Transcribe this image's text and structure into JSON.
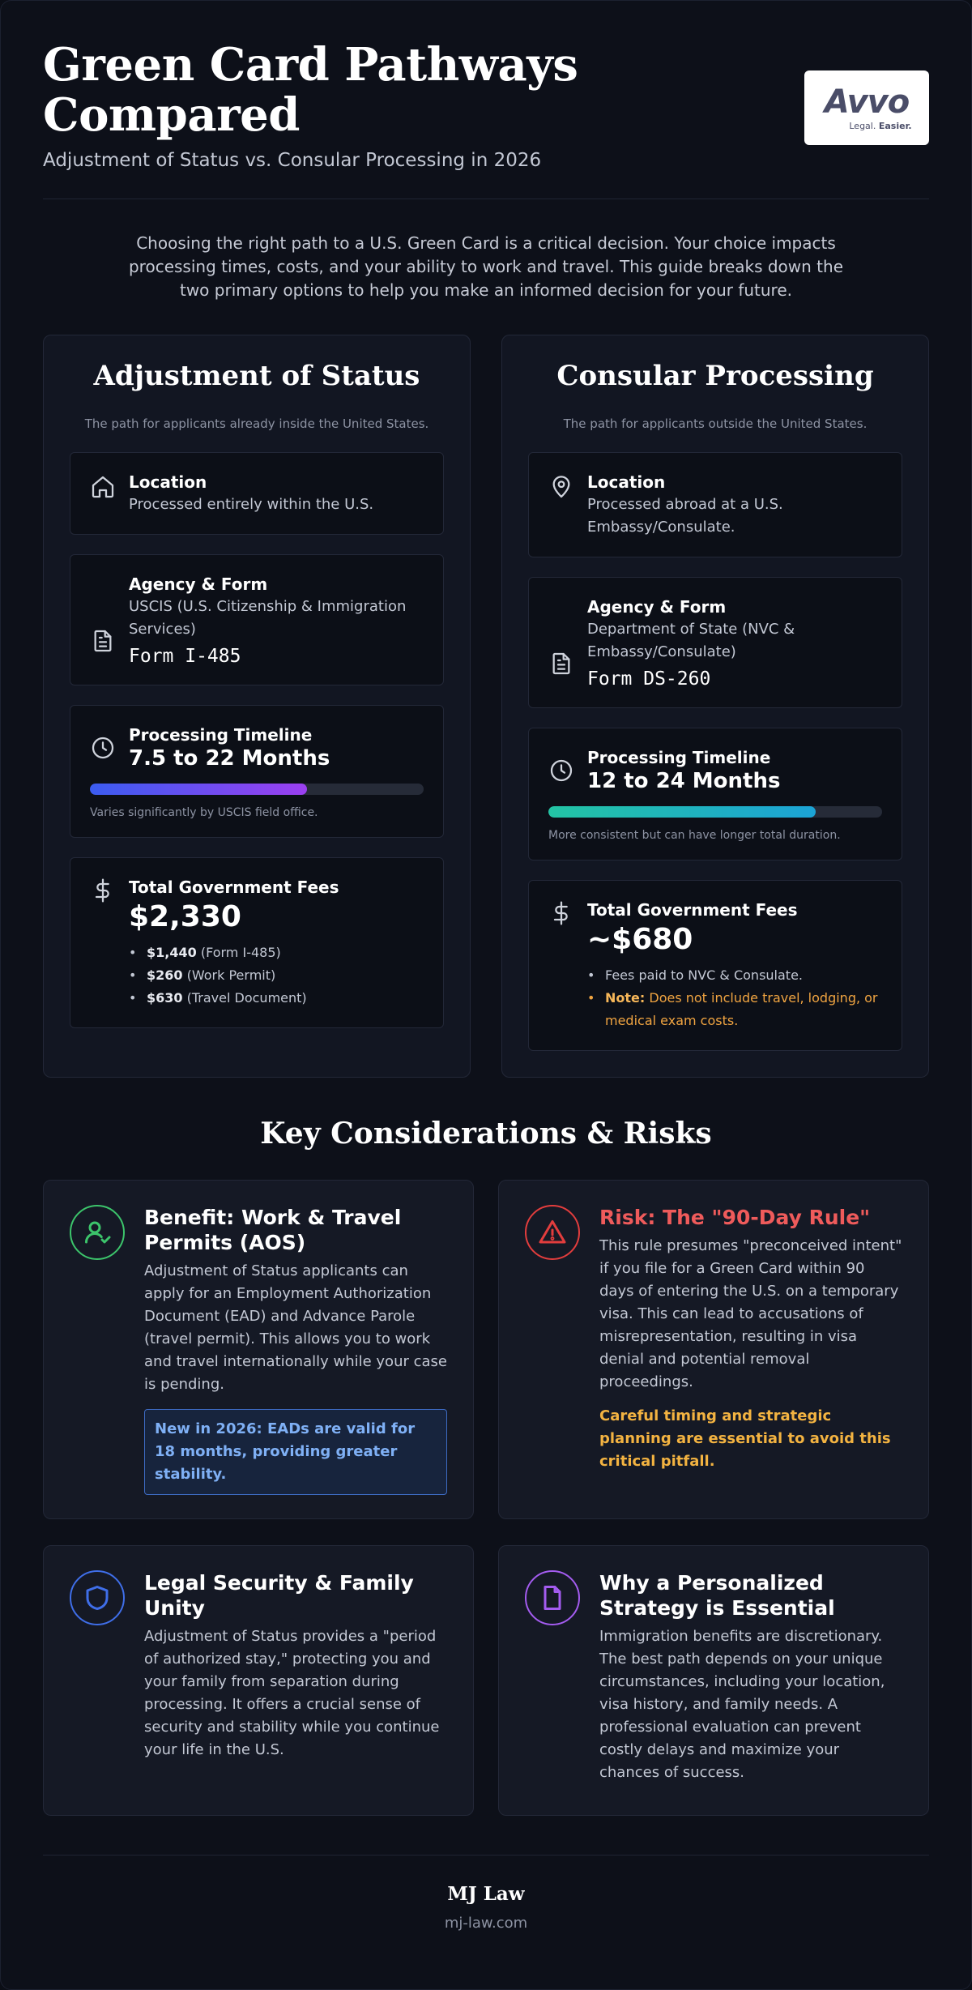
{
  "header": {
    "title": "Green Card Pathways Compared",
    "subtitle": "Adjustment of Status vs. Consular Processing in 2026",
    "logo": {
      "word": "Avvo",
      "tag_a": "Legal.",
      "tag_b": "Easier."
    }
  },
  "intro": "Choosing the right path to a U.S. Green Card is a critical decision. Your choice impacts processing times, costs, and your ability to work and travel. This guide breaks down the two primary options to help you make an informed decision for your future.",
  "aos": {
    "title": "Adjustment of Status",
    "subtitle": "The path for applicants already inside the United States.",
    "location": {
      "label": "Location",
      "text": "Processed entirely within the U.S.",
      "icon": "home-icon"
    },
    "agency": {
      "label": "Agency & Form",
      "text": "USCIS (U.S. Citizenship & Immigration Services)",
      "form": "Form I-485",
      "icon": "document-icon"
    },
    "timeline": {
      "label": "Processing Timeline",
      "value": "7.5 to 22 Months",
      "progress": 0.65,
      "note": "Varies significantly by USCIS field office.",
      "icon": "clock-icon",
      "color_start": "#3b5cf0",
      "color_end": "#9b3ff0"
    },
    "fees": {
      "label": "Total Government Fees",
      "value": "$2,330",
      "icon": "dollar-icon",
      "items": [
        {
          "amount": "$1,440",
          "desc": "(Form I-485)"
        },
        {
          "amount": "$260",
          "desc": "(Work Permit)"
        },
        {
          "amount": "$630",
          "desc": "(Travel Document)"
        }
      ]
    }
  },
  "cp": {
    "title": "Consular Processing",
    "subtitle": "The path for applicants outside the United States.",
    "location": {
      "label": "Location",
      "text": "Processed abroad at a U.S. Embassy/Consulate.",
      "icon": "map-pin-icon"
    },
    "agency": {
      "label": "Agency & Form",
      "text": "Department of State (NVC & Embassy/Consulate)",
      "form": "Form DS-260",
      "icon": "document-icon"
    },
    "timeline": {
      "label": "Processing Timeline",
      "value": "12 to 24 Months",
      "progress": 0.8,
      "note": "More consistent but can have longer total duration.",
      "icon": "clock-icon",
      "color_start": "#23c4a4",
      "color_end": "#1ca3d6"
    },
    "fees": {
      "label": "Total Government Fees",
      "value": "~$680",
      "icon": "dollar-icon",
      "item": "Fees paid to NVC & Consulate.",
      "note_label": "Note:",
      "note_text": "Does not include travel, lodging, or medical exam costs."
    }
  },
  "considerations": {
    "title": "Key Considerations & Risks",
    "benefit": {
      "icon": "user-check-icon",
      "color": "#3cc46b",
      "heading": "Benefit: Work & Travel Permits (AOS)",
      "text": "Adjustment of Status applicants can apply for an Employment Authorization Document (EAD) and Advance Parole (travel permit). This allows you to work and travel internationally while your case is pending.",
      "callout": "New in 2026: EADs are valid for 18 months, providing greater stability."
    },
    "risk": {
      "icon": "warning-triangle-icon",
      "color": "#e23d3d",
      "heading": "Risk: The \"90-Day Rule\"",
      "text": "This rule presumes \"preconceived intent\" if you file for a Green Card within 90 days of entering the U.S. on a temporary visa. This can lead to accusations of misrepresentation, resulting in visa denial and potential removal proceedings.",
      "warning": "Careful timing and strategic planning are essential to avoid this critical pitfall."
    },
    "security": {
      "icon": "shield-icon",
      "color": "#3f6ee8",
      "heading": "Legal Security & Family Unity",
      "text": "Adjustment of Status provides a \"period of authorized stay,\" protecting you and your family from separation during processing. It offers a crucial sense of security and stability while you continue your life in the U.S."
    },
    "strategy": {
      "icon": "file-icon",
      "color": "#a45cf0",
      "heading": "Why a Personalized Strategy is Essential",
      "text": "Immigration benefits are discretionary. The best path depends on your unique circumstances, including your location, visa history, and family needs. A professional evaluation can prevent costly delays and maximize your chances of success."
    }
  },
  "footer": {
    "firm": "MJ Law",
    "site": "mj-law.com"
  }
}
